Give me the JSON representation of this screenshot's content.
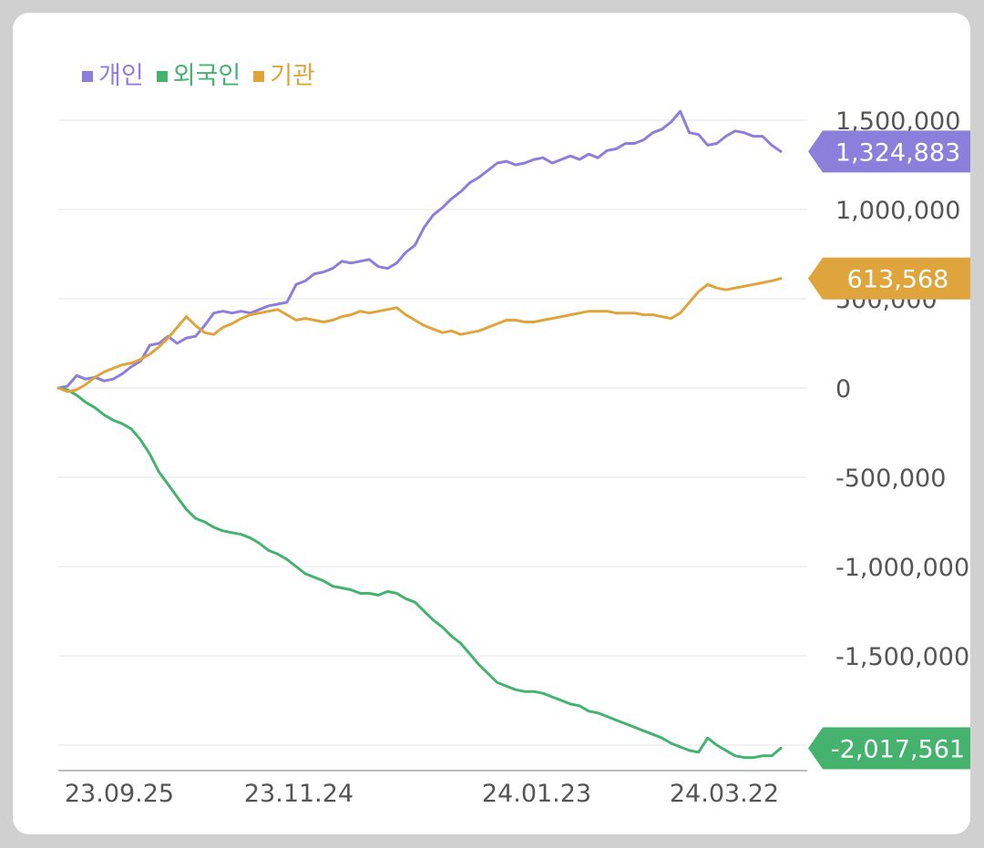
{
  "chart_data": {
    "type": "line",
    "title": "",
    "xlabel": "",
    "ylabel": "",
    "ylim": [
      -2000000,
      1500000
    ],
    "yticks": [
      1500000,
      1000000,
      500000,
      0,
      -500000,
      -1000000,
      -1500000
    ],
    "ytick_labels": [
      "1,500,000",
      "1,000,000",
      "500,000",
      "0",
      "-500,000",
      "-1,000,000",
      "-1,500,000"
    ],
    "xtick_labels": [
      "23.09.25",
      "23.11.24",
      "24.01.23",
      "24.03.22"
    ],
    "grid": true,
    "legend": "top-left",
    "series": [
      {
        "name": "개인",
        "color": "#8c7fdc",
        "end_label": "1,324,883",
        "x": [
          0,
          10,
          20,
          30,
          40,
          50,
          60,
          70,
          80,
          90,
          100,
          110,
          120,
          130,
          140,
          150,
          160,
          170,
          180,
          190,
          200,
          210,
          220,
          230,
          240,
          250,
          260,
          270,
          280,
          290,
          300,
          310,
          320,
          330,
          340,
          350,
          360,
          370,
          380,
          390,
          400,
          410,
          420,
          430,
          440,
          450,
          460,
          470,
          480,
          490,
          500,
          510,
          520,
          530,
          540,
          550,
          560,
          570,
          580,
          590,
          600,
          610,
          620,
          630,
          640,
          650,
          660,
          670,
          680,
          690,
          700,
          710,
          720,
          730,
          740,
          750,
          760,
          770,
          780,
          790
        ],
        "values": [
          0,
          10000,
          70000,
          50000,
          60000,
          40000,
          50000,
          80000,
          120000,
          150000,
          240000,
          250000,
          290000,
          250000,
          280000,
          290000,
          350000,
          420000,
          430000,
          420000,
          430000,
          420000,
          440000,
          460000,
          470000,
          480000,
          580000,
          600000,
          640000,
          650000,
          670000,
          710000,
          700000,
          710000,
          720000,
          680000,
          670000,
          700000,
          760000,
          800000,
          900000,
          970000,
          1010000,
          1060000,
          1100000,
          1150000,
          1180000,
          1220000,
          1260000,
          1270000,
          1250000,
          1260000,
          1280000,
          1290000,
          1260000,
          1280000,
          1300000,
          1280000,
          1310000,
          1290000,
          1330000,
          1340000,
          1370000,
          1370000,
          1390000,
          1430000,
          1450000,
          1490000,
          1550000,
          1430000,
          1420000,
          1360000,
          1370000,
          1410000,
          1440000,
          1430000,
          1410000,
          1410000,
          1360000,
          1324883
        ]
      },
      {
        "name": "외국인",
        "color": "#45b36e",
        "end_label": "-2,017,561",
        "x": [
          0,
          10,
          20,
          30,
          40,
          50,
          60,
          70,
          80,
          90,
          100,
          110,
          120,
          130,
          140,
          150,
          160,
          170,
          180,
          190,
          200,
          210,
          220,
          230,
          240,
          250,
          260,
          270,
          280,
          290,
          300,
          310,
          320,
          330,
          340,
          350,
          360,
          370,
          380,
          390,
          400,
          410,
          420,
          430,
          440,
          450,
          460,
          470,
          480,
          490,
          500,
          510,
          520,
          530,
          540,
          550,
          560,
          570,
          580,
          590,
          600,
          610,
          620,
          630,
          640,
          650,
          660,
          670,
          680,
          690,
          700,
          710,
          720,
          730,
          740,
          750,
          760,
          770,
          780,
          790
        ],
        "values": [
          0,
          -10000,
          -40000,
          -80000,
          -110000,
          -150000,
          -180000,
          -200000,
          -230000,
          -290000,
          -370000,
          -470000,
          -540000,
          -610000,
          -680000,
          -730000,
          -750000,
          -780000,
          -800000,
          -810000,
          -820000,
          -840000,
          -870000,
          -910000,
          -930000,
          -960000,
          -1000000,
          -1040000,
          -1060000,
          -1080000,
          -1110000,
          -1120000,
          -1130000,
          -1150000,
          -1150000,
          -1160000,
          -1140000,
          -1150000,
          -1180000,
          -1200000,
          -1250000,
          -1300000,
          -1340000,
          -1390000,
          -1430000,
          -1490000,
          -1550000,
          -1600000,
          -1650000,
          -1670000,
          -1690000,
          -1700000,
          -1700000,
          -1710000,
          -1730000,
          -1750000,
          -1770000,
          -1780000,
          -1810000,
          -1820000,
          -1840000,
          -1860000,
          -1880000,
          -1900000,
          -1920000,
          -1940000,
          -1960000,
          -1990000,
          -2010000,
          -2030000,
          -2040000,
          -1960000,
          -2000000,
          -2030000,
          -2060000,
          -2070000,
          -2070000,
          -2060000,
          -2060000,
          -2017561
        ]
      },
      {
        "name": "기관",
        "color": "#e0a43c",
        "end_label": "613,568",
        "x": [
          0,
          10,
          20,
          30,
          40,
          50,
          60,
          70,
          80,
          90,
          100,
          110,
          120,
          130,
          140,
          150,
          160,
          170,
          180,
          190,
          200,
          210,
          220,
          230,
          240,
          250,
          260,
          270,
          280,
          290,
          300,
          310,
          320,
          330,
          340,
          350,
          360,
          370,
          380,
          390,
          400,
          410,
          420,
          430,
          440,
          450,
          460,
          470,
          480,
          490,
          500,
          510,
          520,
          530,
          540,
          550,
          560,
          570,
          580,
          590,
          600,
          610,
          620,
          630,
          640,
          650,
          660,
          670,
          680,
          690,
          700,
          710,
          720,
          730,
          740,
          750,
          760,
          770,
          780,
          790
        ],
        "values": [
          0,
          -20000,
          -10000,
          20000,
          60000,
          90000,
          110000,
          130000,
          140000,
          160000,
          190000,
          230000,
          280000,
          340000,
          400000,
          350000,
          310000,
          300000,
          340000,
          360000,
          390000,
          410000,
          420000,
          430000,
          440000,
          410000,
          380000,
          390000,
          380000,
          370000,
          380000,
          400000,
          410000,
          430000,
          420000,
          430000,
          440000,
          450000,
          410000,
          380000,
          350000,
          330000,
          310000,
          320000,
          300000,
          310000,
          320000,
          340000,
          360000,
          380000,
          380000,
          370000,
          370000,
          380000,
          390000,
          400000,
          410000,
          420000,
          430000,
          430000,
          430000,
          420000,
          420000,
          420000,
          410000,
          410000,
          400000,
          390000,
          420000,
          480000,
          540000,
          580000,
          560000,
          550000,
          560000,
          570000,
          580000,
          590000,
          600000,
          613568
        ]
      }
    ]
  }
}
